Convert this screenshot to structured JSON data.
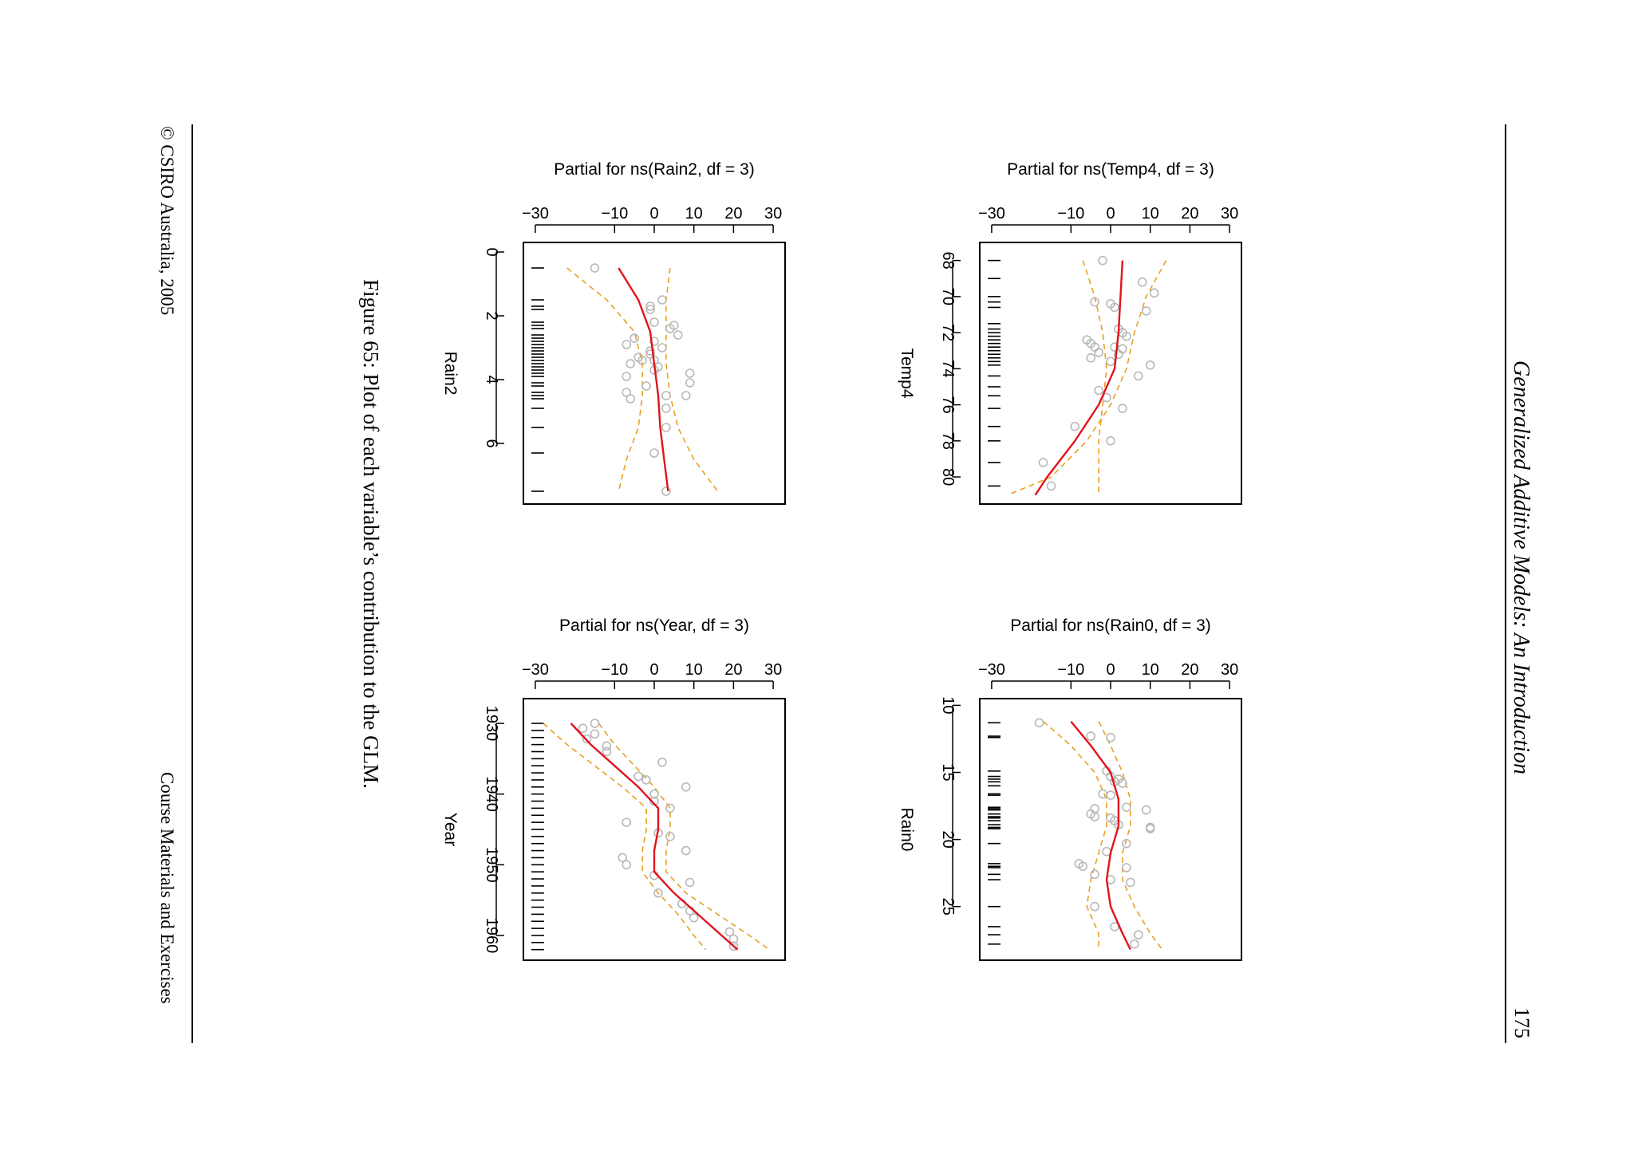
{
  "page": {
    "running_title": "Generalized Additive Models: An Introduction",
    "page_number": "175",
    "footer_left": "© CSIRO Australia, 2005",
    "footer_right": "Course Materials and Exercises",
    "caption": "Figure 65: Plot of each variable’s contribution to the GLM."
  },
  "chart_data": [
    {
      "type": "scatter",
      "title": "Partial for ns(Temp4, df = 3)",
      "xlabel": "Temp4",
      "ylabel": "Partial for ns(Temp4, df = 3)",
      "xlim": [
        67,
        81.5
      ],
      "ylim": [
        -33,
        33
      ],
      "xticks": [
        68,
        70,
        72,
        74,
        76,
        78,
        80
      ],
      "yticks": [
        -30,
        -10,
        0,
        10,
        20,
        30
      ],
      "ytick_labels": [
        "−30",
        "−10",
        "0",
        "10",
        "20",
        "30"
      ],
      "colors": {
        "fit": "#e0141e",
        "band": "#e8a020",
        "points": "#b8b8b8"
      },
      "fit": {
        "x": [
          68,
          70,
          72,
          74,
          76,
          78,
          80,
          81
        ],
        "y": [
          3,
          2.5,
          2,
          1,
          -3,
          -9,
          -16,
          -19
        ]
      },
      "upper_band": {
        "x": [
          68,
          70,
          72,
          74,
          76,
          78,
          80,
          81
        ],
        "y": [
          14,
          9,
          6,
          4,
          0,
          -6,
          -15,
          -26
        ]
      },
      "lower_band": {
        "x": [
          68,
          70,
          72,
          74,
          76,
          78,
          80,
          81
        ],
        "y": [
          -7,
          -4,
          -2,
          -1,
          -2,
          -3,
          -3,
          -3
        ]
      },
      "points": [
        [
          68,
          -2
        ],
        [
          69.2,
          8
        ],
        [
          69.8,
          11
        ],
        [
          70.3,
          -4
        ],
        [
          70.4,
          0
        ],
        [
          70.6,
          1
        ],
        [
          70.8,
          9
        ],
        [
          71.8,
          2
        ],
        [
          72,
          3
        ],
        [
          72.2,
          4
        ],
        [
          72.4,
          -6
        ],
        [
          72.6,
          -5
        ],
        [
          72.8,
          -4
        ],
        [
          72.8,
          1
        ],
        [
          72.9,
          3
        ],
        [
          73.1,
          -3
        ],
        [
          73.2,
          2
        ],
        [
          73.4,
          -5
        ],
        [
          73.6,
          0
        ],
        [
          73.8,
          10
        ],
        [
          74.4,
          7
        ],
        [
          75.2,
          -3
        ],
        [
          75.6,
          -1
        ],
        [
          76.2,
          3
        ],
        [
          77.2,
          -9
        ],
        [
          78,
          0
        ],
        [
          79.2,
          -17
        ],
        [
          80.5,
          -15
        ]
      ],
      "rug": [
        68,
        69,
        70,
        70.3,
        70.6,
        71.5,
        71.8,
        72,
        72.2,
        72.4,
        72.6,
        72.8,
        73,
        73.2,
        73.4,
        73.6,
        73.8,
        74.4,
        75,
        75.5,
        76.2,
        77.2,
        78,
        79.2,
        80.5
      ]
    },
    {
      "type": "scatter",
      "title": "Partial for ns(Rain0, df = 3)",
      "xlabel": "Rain0",
      "ylabel": "Partial for ns(Rain0, df = 3)",
      "xlim": [
        9.5,
        29
      ],
      "ylim": [
        -33,
        33
      ],
      "xticks": [
        10,
        15,
        20,
        25
      ],
      "yticks": [
        -30,
        -10,
        0,
        10,
        20,
        30
      ],
      "ytick_labels": [
        "−30",
        "−10",
        "0",
        "10",
        "20",
        "30"
      ],
      "colors": {
        "fit": "#e0141e",
        "band": "#e8a020",
        "points": "#b8b8b8"
      },
      "fit": {
        "x": [
          11.2,
          13,
          15,
          17,
          19,
          21,
          23,
          25,
          27,
          28.2
        ],
        "y": [
          -10,
          -5,
          0,
          2,
          2,
          0,
          -1,
          0,
          3,
          5
        ]
      },
      "upper_band": {
        "x": [
          11.2,
          13,
          15,
          17,
          19,
          21,
          23,
          25,
          27,
          28.2
        ],
        "y": [
          -3,
          0,
          3,
          5,
          5,
          3,
          3,
          6,
          10,
          13
        ]
      },
      "lower_band": {
        "x": [
          11.2,
          13,
          15,
          17,
          19,
          21,
          23,
          25,
          27,
          28.2
        ],
        "y": [
          -17,
          -10,
          -4,
          -1,
          -1,
          -3,
          -5,
          -6,
          -3,
          -3
        ]
      },
      "points": [
        [
          11.3,
          -18
        ],
        [
          12.3,
          -5
        ],
        [
          12.4,
          0
        ],
        [
          14.9,
          -1
        ],
        [
          15.3,
          0
        ],
        [
          15.5,
          2
        ],
        [
          15.7,
          1
        ],
        [
          15.8,
          3
        ],
        [
          16.6,
          -2
        ],
        [
          16.7,
          0
        ],
        [
          17.6,
          4
        ],
        [
          17.7,
          -4
        ],
        [
          17.8,
          9
        ],
        [
          18.1,
          -5
        ],
        [
          18.3,
          -4
        ],
        [
          18.4,
          0
        ],
        [
          18.6,
          1
        ],
        [
          18.9,
          2
        ],
        [
          19.1,
          10
        ],
        [
          19.2,
          10
        ],
        [
          20.3,
          4
        ],
        [
          20.9,
          -1
        ],
        [
          21.8,
          -8
        ],
        [
          22,
          -7
        ],
        [
          22.1,
          4
        ],
        [
          22.6,
          -4
        ],
        [
          23,
          0
        ],
        [
          23.2,
          5
        ],
        [
          25,
          -4
        ],
        [
          26.5,
          1
        ],
        [
          27.1,
          7
        ],
        [
          27.8,
          6
        ]
      ],
      "rug": [
        11.3,
        12.3,
        12.4,
        14.9,
        15.3,
        15.5,
        15.7,
        16,
        16.6,
        16.7,
        17.6,
        17.7,
        17.8,
        18.1,
        18.3,
        18.4,
        18.6,
        18.9,
        19.1,
        19.2,
        20.3,
        21.8,
        22,
        22.1,
        22.6,
        23,
        25,
        26.5,
        27.1,
        27.8
      ]
    },
    {
      "type": "scatter",
      "title": "Partial for ns(Rain2, df = 3)",
      "xlabel": "Rain2",
      "ylabel": "Partial for ns(Rain2, df = 3)",
      "xlim": [
        -0.3,
        7.9
      ],
      "ylim": [
        -33,
        33
      ],
      "xticks": [
        0,
        2,
        4,
        6
      ],
      "yticks": [
        -30,
        -10,
        0,
        10,
        20,
        30
      ],
      "ytick_labels": [
        "−30",
        "−10",
        "0",
        "10",
        "20",
        "30"
      ],
      "colors": {
        "fit": "#e0141e",
        "band": "#e8a020",
        "points": "#b8b8b8"
      },
      "fit": {
        "x": [
          0.5,
          1.5,
          2.5,
          3.5,
          4.5,
          5.5,
          6.5,
          7.5
        ],
        "y": [
          -9,
          -4,
          -1,
          0,
          1,
          1.5,
          2.5,
          3.5
        ]
      },
      "upper_band": {
        "x": [
          0.5,
          1.5,
          2.5,
          3.5,
          4.5,
          5.5,
          6.5,
          7.5
        ],
        "y": [
          4,
          3,
          3,
          3,
          4,
          6,
          10,
          16
        ]
      },
      "lower_band": {
        "x": [
          0.5,
          1.5,
          2.5,
          3.5,
          4.5,
          5.5,
          6.5,
          7.5
        ],
        "y": [
          -22,
          -12,
          -5,
          -3,
          -3,
          -4,
          -7,
          -9
        ]
      },
      "points": [
        [
          0.5,
          -15
        ],
        [
          1.5,
          2
        ],
        [
          1.7,
          -1
        ],
        [
          1.8,
          -1
        ],
        [
          2.2,
          0
        ],
        [
          2.3,
          5
        ],
        [
          2.4,
          4
        ],
        [
          2.6,
          6
        ],
        [
          2.7,
          -5
        ],
        [
          2.8,
          0
        ],
        [
          2.9,
          -7
        ],
        [
          3,
          2
        ],
        [
          3.1,
          -1
        ],
        [
          3.2,
          -1
        ],
        [
          3.3,
          -4
        ],
        [
          3.4,
          -3
        ],
        [
          3.4,
          0
        ],
        [
          3.5,
          -6
        ],
        [
          3.6,
          1
        ],
        [
          3.7,
          0
        ],
        [
          3.8,
          9
        ],
        [
          3.9,
          -7
        ],
        [
          4.1,
          9
        ],
        [
          4.2,
          -2
        ],
        [
          4.4,
          -7
        ],
        [
          4.5,
          3
        ],
        [
          4.5,
          8
        ],
        [
          4.6,
          -6
        ],
        [
          4.9,
          3
        ],
        [
          5.5,
          3
        ],
        [
          6.3,
          0
        ],
        [
          7.5,
          3
        ]
      ],
      "rug": [
        0.5,
        1.5,
        1.7,
        1.8,
        2.2,
        2.3,
        2.4,
        2.6,
        2.7,
        2.8,
        2.9,
        3,
        3.1,
        3.2,
        3.3,
        3.4,
        3.5,
        3.6,
        3.7,
        3.8,
        3.9,
        4.1,
        4.2,
        4.4,
        4.5,
        4.6,
        4.9,
        5.5,
        6.3,
        7.5
      ]
    },
    {
      "type": "scatter",
      "title": "Partial for ns(Year, df = 3)",
      "xlabel": "Year",
      "ylabel": "Partial for ns(Year, df = 3)",
      "xlim": [
        1926.5,
        1963.5
      ],
      "ylim": [
        -33,
        33
      ],
      "xticks": [
        1930,
        1940,
        1950,
        1960
      ],
      "yticks": [
        -30,
        -10,
        0,
        10,
        20,
        30
      ],
      "ytick_labels": [
        "−30",
        "−10",
        "0",
        "10",
        "20",
        "30"
      ],
      "colors": {
        "fit": "#e0141e",
        "band": "#e8a020",
        "points": "#b8b8b8"
      },
      "fit": {
        "x": [
          1930,
          1933,
          1936,
          1939,
          1942,
          1945,
          1948,
          1951,
          1954,
          1957,
          1960,
          1962
        ],
        "y": [
          -21,
          -16,
          -10,
          -4,
          1,
          1,
          0,
          0,
          5,
          11,
          17,
          21
        ]
      },
      "upper_band": {
        "x": [
          1930,
          1933,
          1936,
          1939,
          1942,
          1945,
          1948,
          1951,
          1954,
          1957,
          1960,
          1962
        ],
        "y": [
          -14,
          -10,
          -5,
          0,
          4,
          4,
          3,
          3,
          8,
          16,
          24,
          29
        ]
      },
      "lower_band": {
        "x": [
          1930,
          1933,
          1936,
          1939,
          1942,
          1945,
          1948,
          1951,
          1954,
          1957,
          1960,
          1962
        ],
        "y": [
          -28,
          -22,
          -15,
          -8,
          -2,
          -2,
          -3,
          -3,
          1,
          6,
          10,
          13
        ]
      },
      "points": [
        [
          1930,
          -15
        ],
        [
          1930.7,
          -18
        ],
        [
          1931.5,
          -15
        ],
        [
          1932.2,
          -17
        ],
        [
          1933.2,
          -12
        ],
        [
          1934,
          -12
        ],
        [
          1935.5,
          2
        ],
        [
          1937.5,
          -4
        ],
        [
          1938,
          -2
        ],
        [
          1939,
          8
        ],
        [
          1940,
          0
        ],
        [
          1941,
          0
        ],
        [
          1942,
          4
        ],
        [
          1944,
          -7
        ],
        [
          1945.5,
          1
        ],
        [
          1946,
          4
        ],
        [
          1948,
          8
        ],
        [
          1949,
          -8
        ],
        [
          1950,
          -7
        ],
        [
          1951.5,
          0
        ],
        [
          1952.5,
          9
        ],
        [
          1954,
          1
        ],
        [
          1955.5,
          7
        ],
        [
          1956.5,
          9
        ],
        [
          1957.5,
          10
        ],
        [
          1959.5,
          19
        ],
        [
          1960.5,
          20
        ],
        [
          1961.5,
          20
        ]
      ],
      "rug": [
        1930,
        1931,
        1932,
        1933,
        1934,
        1935,
        1936,
        1937,
        1938,
        1939,
        1940,
        1941,
        1942,
        1943,
        1944,
        1945,
        1946,
        1947,
        1948,
        1949,
        1950,
        1951,
        1952,
        1953,
        1954,
        1955,
        1956,
        1957,
        1958,
        1959,
        1960,
        1961,
        1962
      ]
    }
  ]
}
